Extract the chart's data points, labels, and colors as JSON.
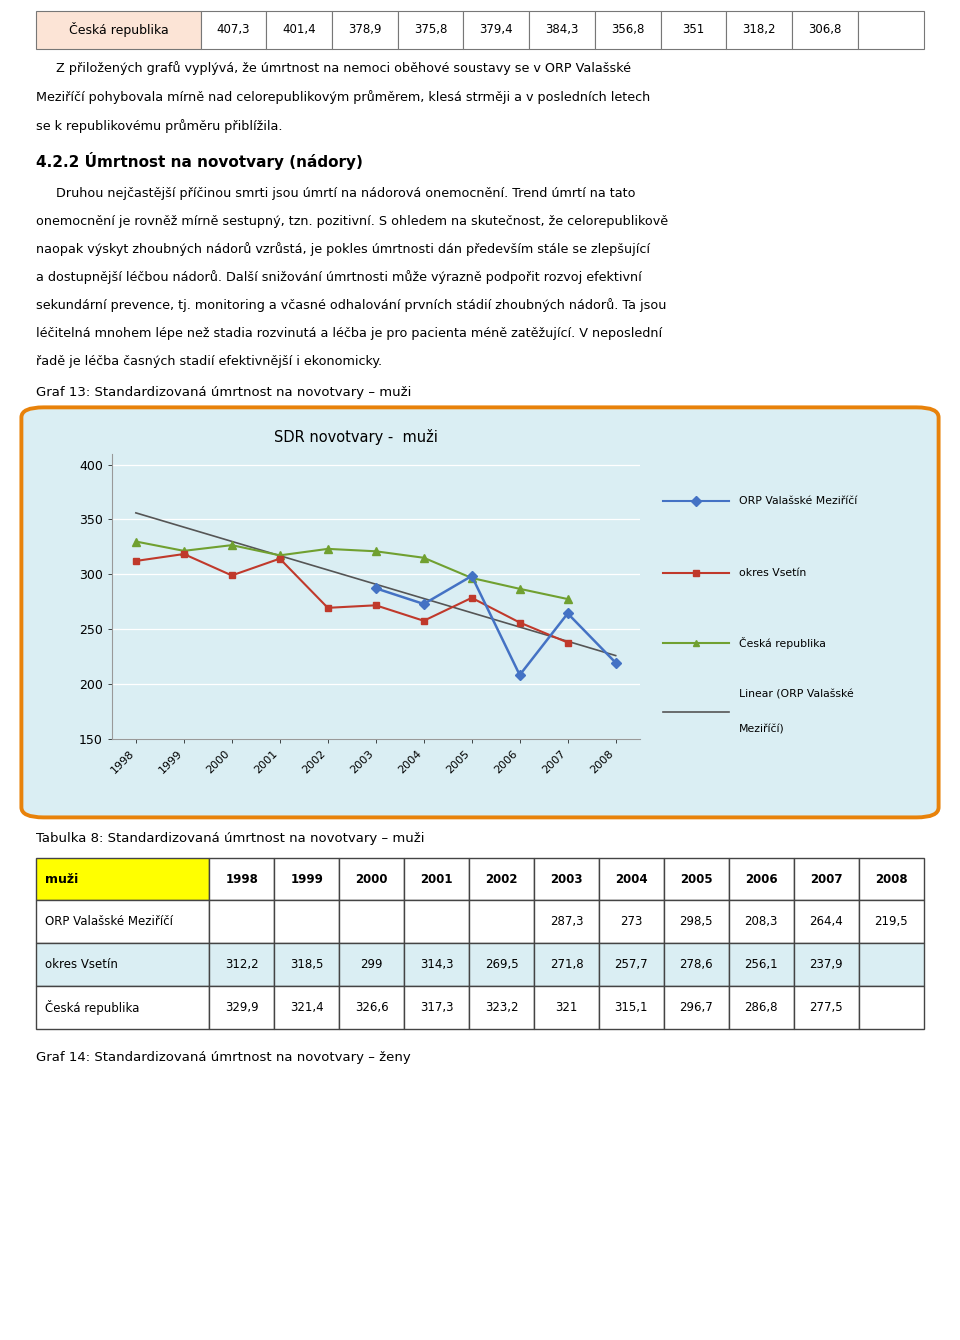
{
  "page_bg": "#ffffff",
  "top_table": {
    "label": "Česká republika",
    "label_bg": "#fce4d6",
    "values": [
      "407,3",
      "401,4",
      "378,9",
      "375,8",
      "379,4",
      "384,3",
      "356,8",
      "351",
      "318,2",
      "306,8",
      ""
    ]
  },
  "paragraph_text": "Z přiložených grafů vyplývá, že úmrtnost na nemoci oběhové soustavy se v ORP Valašské Meziříčí pohybovala mírně nad celorepublikovým průměrem, klesá strměji a v posledních letech se k republikovému průměru přiblížila.",
  "section_heading": "4.2.2 Úmrtnost na novotvary (nádory)",
  "body_text": "Druhou nejčastější příčinou smrti jsou úmrtí na nádorová onemocnění. Trend úmrtí na tato onemocnění je rovněž mírně sestupný, tzn. pozitivní. S ohledem na skutečnost, že celorepublikově naopak výskyt zhoubných nádorů vzrůstá, je pokles úmrtnosti dán především stále se zlepšující a dostupnější léčbou nádorů. Další snižování úmrtnosti může výrazně podpořit rozvoj efektivní sekundární prevence, tj. monitoring a včasné odhalování prvních stádií zhoubných nádorů. Ta jsou léčitelná mnohem lépe než stadia rozvinutá a léčba je pro pacienta méně zatěžující. V neposlední řadě je léčba časných stadií efektivnější i ekonomicky.",
  "graf13_label": "Graf 13: Standardizovaná úmrtnost na novotvary – muži",
  "chart": {
    "title": "SDR novotvary -  muži",
    "bg_color": "#daeef3",
    "border_color": "#e8820a",
    "years": [
      1998,
      1999,
      2000,
      2001,
      2002,
      2003,
      2004,
      2005,
      2006,
      2007,
      2008
    ],
    "orp_data": [
      null,
      null,
      null,
      null,
      null,
      287.3,
      273.0,
      298.5,
      208.3,
      264.4,
      219.5
    ],
    "okres_data": [
      312.2,
      318.5,
      299.0,
      314.3,
      269.5,
      271.8,
      257.7,
      278.6,
      256.1,
      237.9,
      null
    ],
    "cr_data": [
      329.9,
      321.4,
      326.6,
      317.3,
      323.2,
      321.0,
      315.1,
      296.7,
      286.8,
      277.5,
      null
    ],
    "orp_color": "#4472c4",
    "okres_color": "#c0392b",
    "cr_color": "#70a030",
    "linear_color": "#555555",
    "ylim": [
      150,
      410
    ],
    "yticks": [
      150,
      200,
      250,
      300,
      350,
      400
    ],
    "legend_orp": "ORP Valašské Meziříčí",
    "legend_okres": "okres Vsetín",
    "legend_cr": "Česká republika",
    "legend_linear_1": "Linear (ORP Valašské",
    "legend_linear_2": "Meziříčí)"
  },
  "tabulka8_label": "Tabulka 8: Standardizovaná úmrtnost na novotvary – muži",
  "table": {
    "header_label_bg": "#ffff00",
    "header_year_bg": "#ffffff",
    "row_alt_bg": "#daeef3",
    "header_text": "muži",
    "cols": [
      "1998",
      "1999",
      "2000",
      "2001",
      "2002",
      "2003",
      "2004",
      "2005",
      "2006",
      "2007",
      "2008"
    ],
    "rows": [
      {
        "label": "ORP Valašské Meziříčí",
        "values": [
          "",
          "",
          "",
          "",
          "",
          "287,3",
          "273",
          "298,5",
          "208,3",
          "264,4",
          "219,5"
        ]
      },
      {
        "label": "okres Vsetín",
        "values": [
          "312,2",
          "318,5",
          "299",
          "314,3",
          "269,5",
          "271,8",
          "257,7",
          "278,6",
          "256,1",
          "237,9",
          ""
        ]
      },
      {
        "label": "Česká republika",
        "values": [
          "329,9",
          "321,4",
          "326,6",
          "317,3",
          "323,2",
          "321",
          "315,1",
          "296,7",
          "286,8",
          "277,5",
          ""
        ]
      }
    ]
  },
  "graf14_label": "Graf 14: Standardizovaná úmrtnost na novotvary – ženy"
}
